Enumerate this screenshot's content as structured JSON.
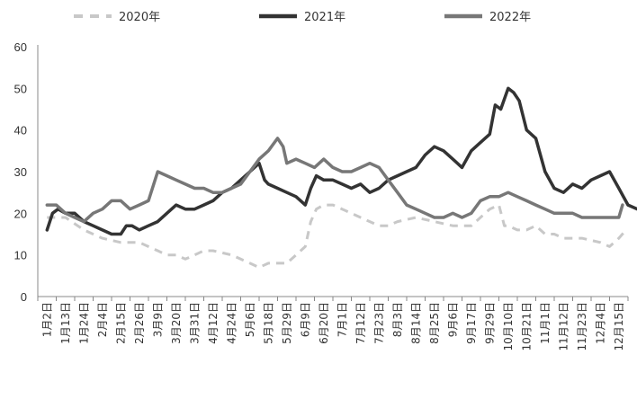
{
  "chart_data": {
    "type": "line",
    "title": "",
    "xlabel": "",
    "ylabel": "",
    "ylim": [
      0,
      60
    ],
    "yticks": [
      0,
      10,
      20,
      30,
      40,
      50,
      60
    ],
    "grid": false,
    "legend": "top",
    "categories": [
      "1月2日",
      "1月13日",
      "1月24日",
      "2月4日",
      "2月15日",
      "2月26日",
      "3月9日",
      "3月20日",
      "3月31日",
      "4月12日",
      "4月24日",
      "5月6日",
      "5月18日",
      "5月29日",
      "6月9日",
      "6月20日",
      "7月1日",
      "7月12日",
      "7月23日",
      "8月3日",
      "8月14日",
      "8月25日",
      "9月6日",
      "9月17日",
      "9月29日",
      "10月10日",
      "10月21日",
      "11月1日",
      "11月12日",
      "11月23日",
      "12月4日",
      "12月15日"
    ],
    "series": [
      {
        "name": "2020年",
        "color": "#c8c8c8",
        "dash": true,
        "points": [
          [
            0,
            19
          ],
          [
            1,
            19
          ],
          [
            2,
            16
          ],
          [
            3,
            14
          ],
          [
            4,
            13
          ],
          [
            5,
            13
          ],
          [
            5.5,
            12
          ],
          [
            6,
            11
          ],
          [
            6.5,
            10
          ],
          [
            7,
            10
          ],
          [
            7.5,
            9
          ],
          [
            8,
            10
          ],
          [
            8.5,
            11
          ],
          [
            9,
            11
          ],
          [
            10,
            10
          ],
          [
            10.5,
            9
          ],
          [
            11,
            8
          ],
          [
            11.5,
            7
          ],
          [
            12,
            8
          ],
          [
            12.5,
            8
          ],
          [
            13,
            8
          ],
          [
            13.5,
            10
          ],
          [
            14,
            12
          ],
          [
            14.3,
            18
          ],
          [
            14.6,
            21
          ],
          [
            15,
            22
          ],
          [
            15.5,
            22
          ],
          [
            16,
            21
          ],
          [
            16.5,
            20
          ],
          [
            17,
            19
          ],
          [
            17.5,
            18
          ],
          [
            18,
            17
          ],
          [
            18.5,
            17
          ],
          [
            19,
            18
          ],
          [
            20,
            19
          ],
          [
            21,
            18
          ],
          [
            22,
            17
          ],
          [
            23,
            17
          ],
          [
            24,
            21
          ],
          [
            24.5,
            22
          ],
          [
            24.8,
            17
          ],
          [
            25,
            17
          ],
          [
            25.5,
            16
          ],
          [
            26,
            16
          ],
          [
            26.5,
            17
          ],
          [
            27,
            15
          ],
          [
            27.5,
            15
          ],
          [
            28,
            14
          ],
          [
            29,
            14
          ],
          [
            30,
            13
          ],
          [
            30.5,
            12
          ],
          [
            31,
            14
          ],
          [
            31.4,
            16
          ]
        ]
      },
      {
        "name": "2021年",
        "color": "#333333",
        "dash": false,
        "points": [
          [
            0,
            16
          ],
          [
            0.3,
            20
          ],
          [
            0.6,
            21
          ],
          [
            1,
            20
          ],
          [
            1.5,
            20
          ],
          [
            2,
            18
          ],
          [
            2.5,
            17
          ],
          [
            3,
            16
          ],
          [
            3.5,
            15
          ],
          [
            4,
            15
          ],
          [
            4.3,
            17
          ],
          [
            4.6,
            17
          ],
          [
            5,
            16
          ],
          [
            5.5,
            17
          ],
          [
            6,
            18
          ],
          [
            6.5,
            20
          ],
          [
            7,
            22
          ],
          [
            7.5,
            21
          ],
          [
            8,
            21
          ],
          [
            8.5,
            22
          ],
          [
            9,
            23
          ],
          [
            9.5,
            25
          ],
          [
            10,
            26
          ],
          [
            10.5,
            28
          ],
          [
            11,
            30
          ],
          [
            11.5,
            32
          ],
          [
            11.8,
            28
          ],
          [
            12,
            27
          ],
          [
            12.5,
            26
          ],
          [
            13,
            25
          ],
          [
            13.5,
            24
          ],
          [
            14,
            22
          ],
          [
            14.3,
            26
          ],
          [
            14.6,
            29
          ],
          [
            15,
            28
          ],
          [
            15.5,
            28
          ],
          [
            16,
            27
          ],
          [
            16.5,
            26
          ],
          [
            17,
            27
          ],
          [
            17.5,
            25
          ],
          [
            18,
            26
          ],
          [
            18.5,
            28
          ],
          [
            19,
            29
          ],
          [
            19.5,
            30
          ],
          [
            20,
            31
          ],
          [
            20.5,
            34
          ],
          [
            21,
            36
          ],
          [
            21.5,
            35
          ],
          [
            22,
            33
          ],
          [
            22.5,
            31
          ],
          [
            23,
            35
          ],
          [
            23.5,
            37
          ],
          [
            24,
            39
          ],
          [
            24.3,
            46
          ],
          [
            24.6,
            45
          ],
          [
            25,
            50
          ],
          [
            25.3,
            49
          ],
          [
            25.6,
            47
          ],
          [
            26,
            40
          ],
          [
            26.5,
            38
          ],
          [
            27,
            30
          ],
          [
            27.5,
            26
          ],
          [
            28,
            25
          ],
          [
            28.5,
            27
          ],
          [
            29,
            26
          ],
          [
            29.5,
            28
          ],
          [
            30,
            29
          ],
          [
            30.5,
            30
          ],
          [
            31,
            26
          ],
          [
            31.5,
            22
          ],
          [
            32,
            21
          ]
        ]
      },
      {
        "name": "2022年",
        "color": "#777777",
        "dash": false,
        "points": [
          [
            0,
            22
          ],
          [
            0.5,
            22
          ],
          [
            1,
            20
          ],
          [
            1.5,
            19
          ],
          [
            2,
            18
          ],
          [
            2.5,
            20
          ],
          [
            3,
            21
          ],
          [
            3.5,
            23
          ],
          [
            4,
            23
          ],
          [
            4.5,
            21
          ],
          [
            5,
            22
          ],
          [
            5.5,
            23
          ],
          [
            6,
            30
          ],
          [
            6.5,
            29
          ],
          [
            7,
            28
          ],
          [
            7.5,
            27
          ],
          [
            8,
            26
          ],
          [
            8.5,
            26
          ],
          [
            9,
            25
          ],
          [
            9.5,
            25
          ],
          [
            10,
            26
          ],
          [
            10.5,
            27
          ],
          [
            11,
            30
          ],
          [
            11.5,
            33
          ],
          [
            12,
            35
          ],
          [
            12.5,
            38
          ],
          [
            12.8,
            36
          ],
          [
            13,
            32
          ],
          [
            13.5,
            33
          ],
          [
            14,
            32
          ],
          [
            14.5,
            31
          ],
          [
            15,
            33
          ],
          [
            15.5,
            31
          ],
          [
            16,
            30
          ],
          [
            16.5,
            30
          ],
          [
            17,
            31
          ],
          [
            17.5,
            32
          ],
          [
            18,
            31
          ],
          [
            18.5,
            28
          ],
          [
            19,
            25
          ],
          [
            19.5,
            22
          ],
          [
            20,
            21
          ],
          [
            20.5,
            20
          ],
          [
            21,
            19
          ],
          [
            21.5,
            19
          ],
          [
            22,
            20
          ],
          [
            22.5,
            19
          ],
          [
            23,
            20
          ],
          [
            23.5,
            23
          ],
          [
            24,
            24
          ],
          [
            24.5,
            24
          ],
          [
            25,
            25
          ],
          [
            25.5,
            24
          ],
          [
            26,
            23
          ],
          [
            26.5,
            22
          ],
          [
            27,
            21
          ],
          [
            27.5,
            20
          ],
          [
            28,
            20
          ],
          [
            28.5,
            20
          ],
          [
            29,
            19
          ],
          [
            29.5,
            19
          ],
          [
            30,
            19
          ],
          [
            30.5,
            19
          ],
          [
            31,
            19
          ],
          [
            31.2,
            22
          ]
        ]
      }
    ]
  }
}
